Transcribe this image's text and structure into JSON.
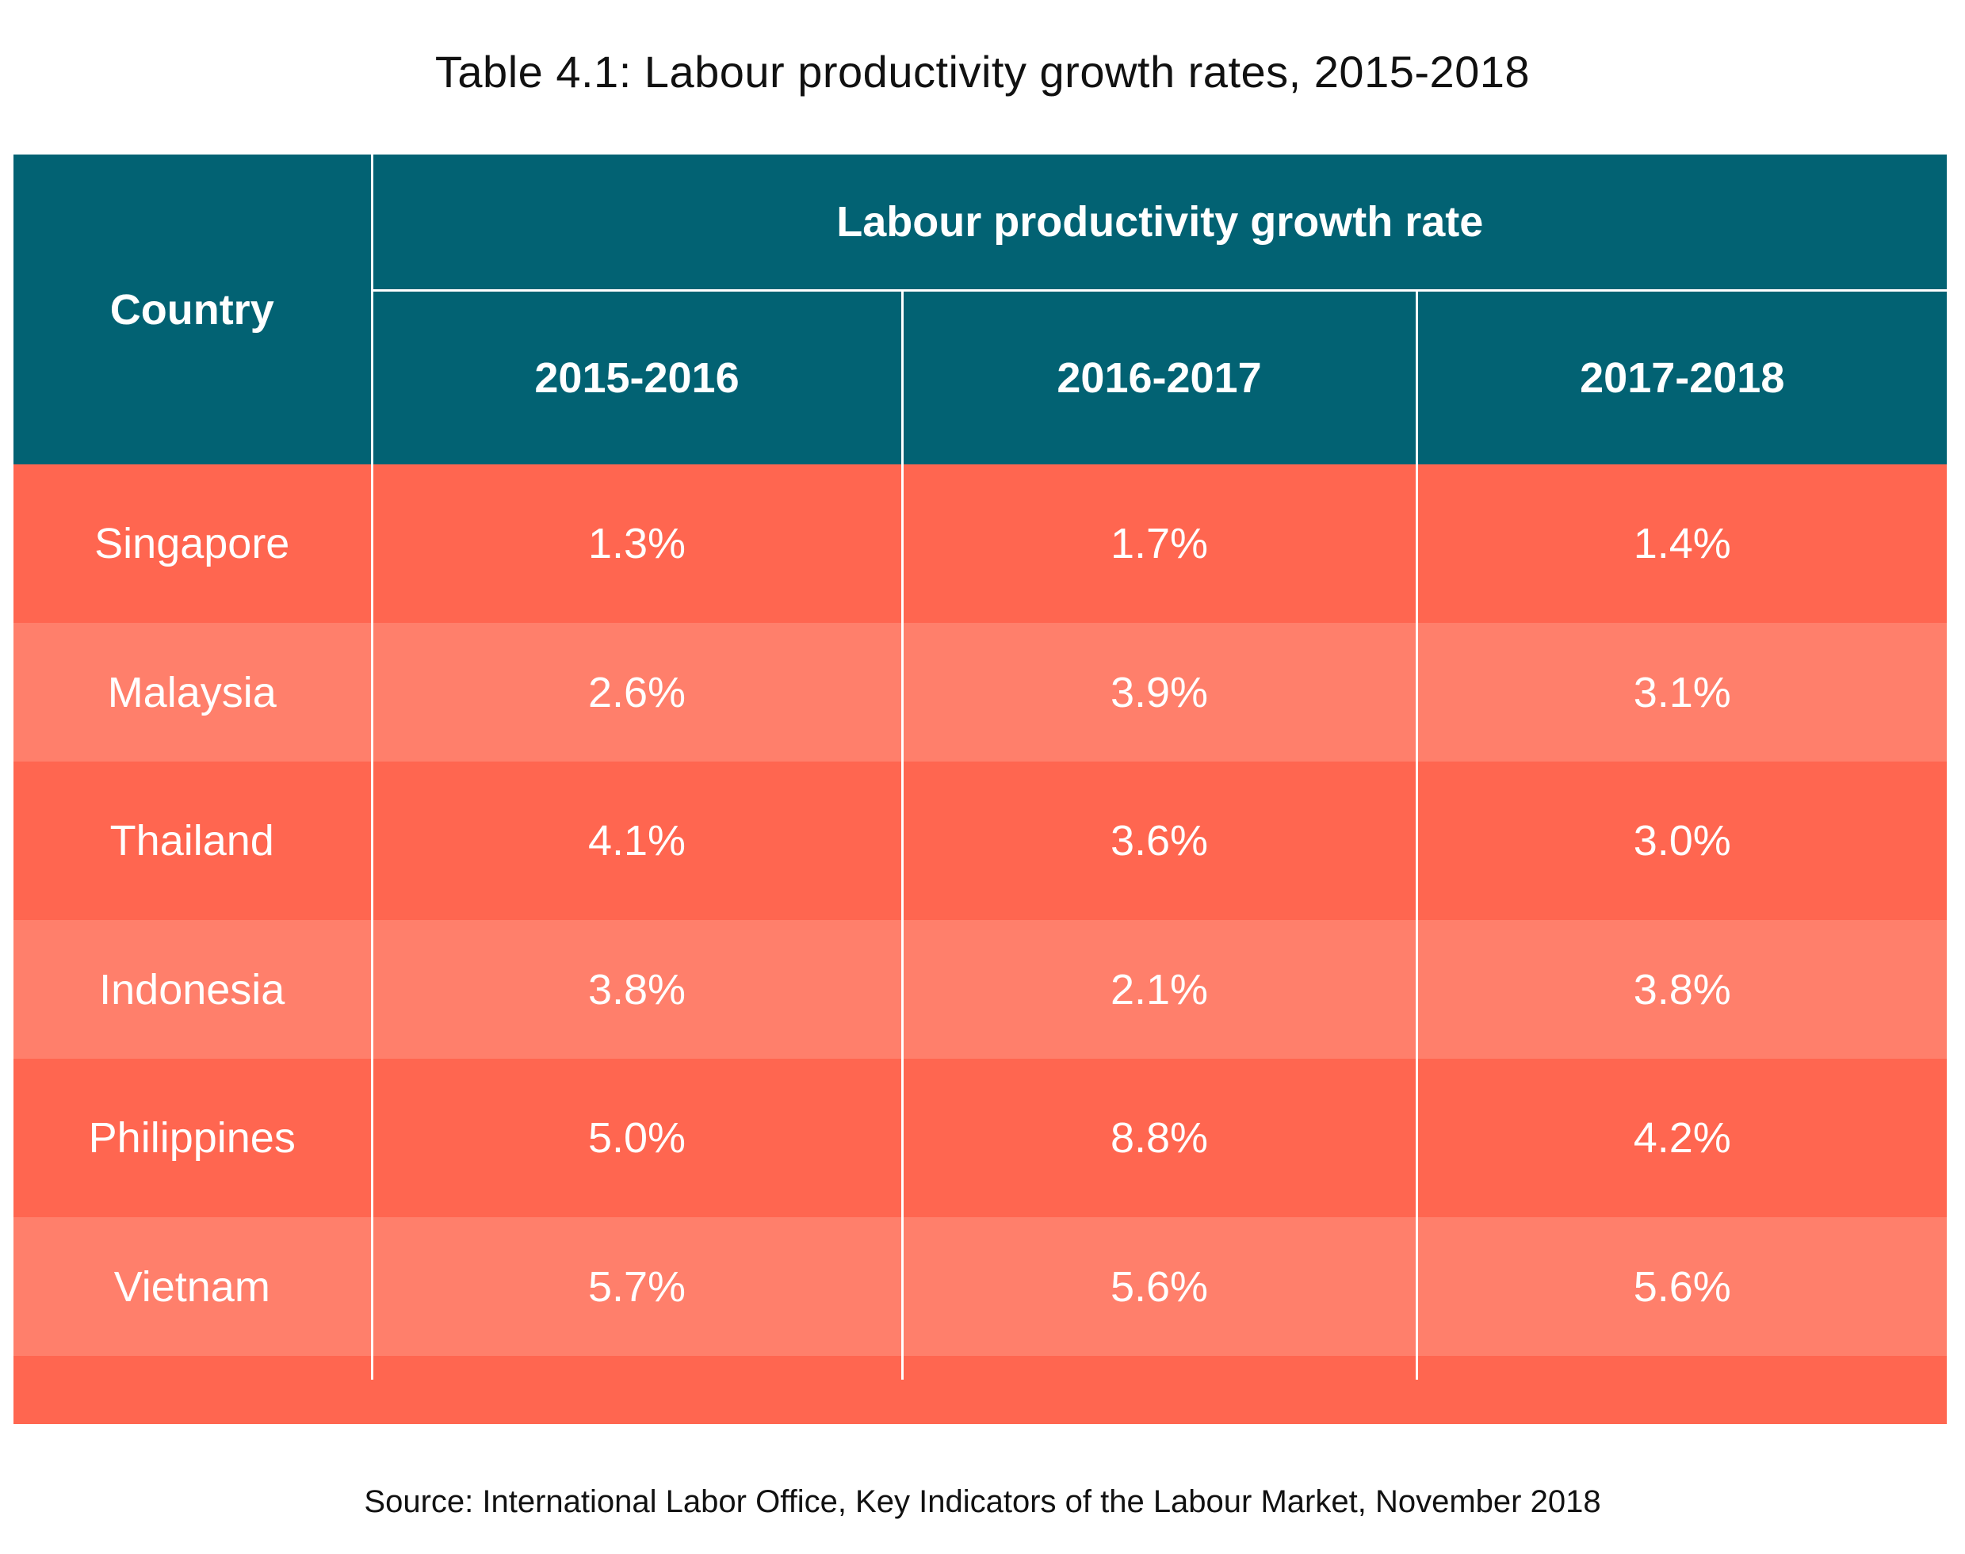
{
  "title": "Table 4.1:  Labour productivity growth rates, 2015-2018",
  "table": {
    "country_header": "Country",
    "group_header": "Labour productivity growth rate",
    "year_headers": [
      "2015-2016",
      "2016-2017",
      "2017-2018"
    ],
    "rows": [
      {
        "country": "Singapore",
        "values": [
          "1.3%",
          "1.7%",
          "1.4%"
        ]
      },
      {
        "country": "Malaysia",
        "values": [
          "2.6%",
          "3.9%",
          "3.1%"
        ]
      },
      {
        "country": "Thailand",
        "values": [
          "4.1%",
          "3.6%",
          "3.0%"
        ]
      },
      {
        "country": "Indonesia",
        "values": [
          "3.8%",
          "2.1%",
          "3.8%"
        ]
      },
      {
        "country": "Philippines",
        "values": [
          "5.0%",
          "8.8%",
          "4.2%"
        ]
      },
      {
        "country": "Vietnam",
        "values": [
          "5.7%",
          "5.6%",
          "5.6%"
        ]
      }
    ]
  },
  "source": "Source: International Labor Office, Key Indicators of the Labour Market, November 2018",
  "colors": {
    "header_bg": "#026273",
    "row_dark": "#ff6650",
    "row_light": "#ff7f6b"
  }
}
